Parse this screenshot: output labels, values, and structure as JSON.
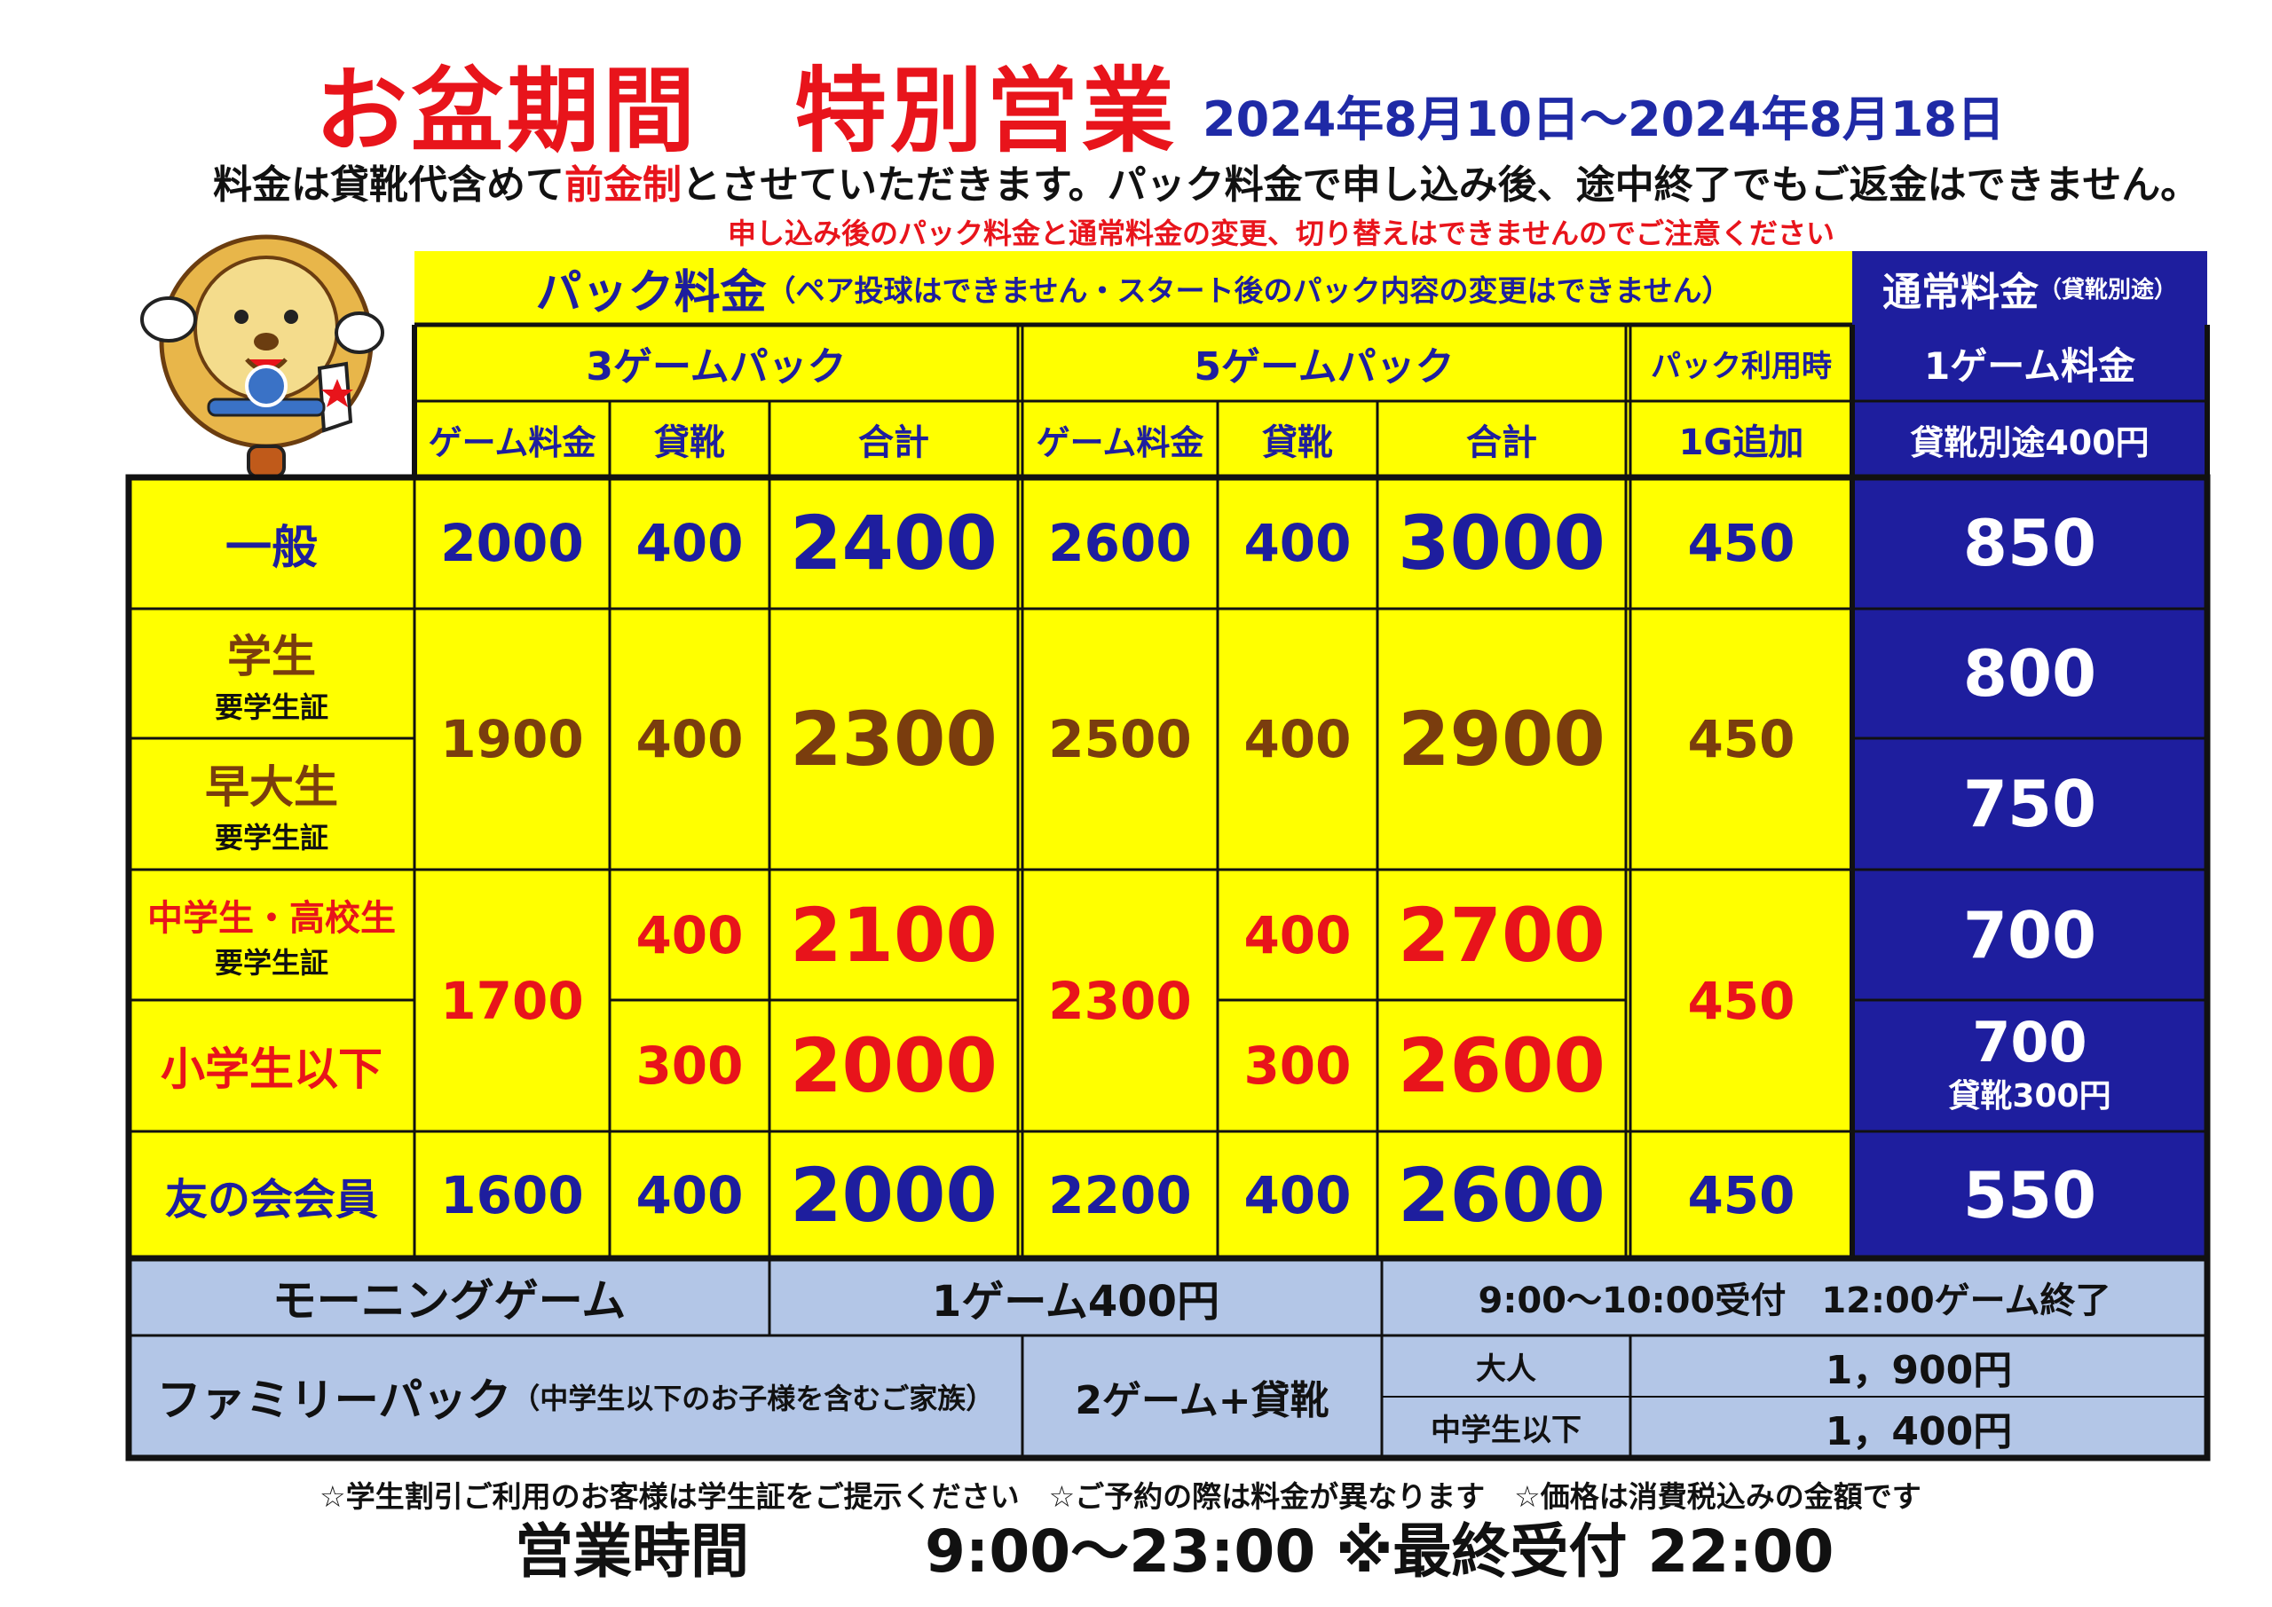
{
  "header": {
    "title": "お盆期間　特別営業",
    "dates": "2024年8月10日～2024年8月18日",
    "notice_pre": "料金は貸靴代含めて",
    "notice_red": "前金制",
    "notice_post": "とさせていただきます。パック料金で申し込み後、途中終了でもご返金はできません。",
    "warning": "申し込み後のパック料金と通常料金の変更、切り替えはできませんのでご注意ください"
  },
  "table": {
    "pack_title": "パック料金",
    "pack_note": "（ペア投球はできません・スタート後のパック内容の変更はできません）",
    "normal_title": "通常料金",
    "normal_note": "（貸靴別途）",
    "pack3": "3ゲームパック",
    "pack5": "5ゲームパック",
    "pack_use": "パック利用時",
    "add_1g": "1G追加",
    "game_fee": "ゲーム料金",
    "shoes": "貸靴",
    "total": "合計",
    "one_game_fee": "1ゲーム料金",
    "shoes_extra": "貸靴別途400円",
    "rows": {
      "general": {
        "label": "一般",
        "g3": "2000",
        "s3": "400",
        "t3": "2400",
        "g5": "2600",
        "s5": "400",
        "t5": "3000",
        "add": "450",
        "normal": "850"
      },
      "student": {
        "label": "学生",
        "sub": "要学生証",
        "normal": "800"
      },
      "waseda": {
        "label": "早大生",
        "sub": "要学生証",
        "normal": "750"
      },
      "student_group": {
        "g3": "1900",
        "s3": "400",
        "t3": "2300",
        "g5": "2500",
        "s5": "400",
        "t5": "2900",
        "add": "450"
      },
      "junior": {
        "label": "中学生・高校生",
        "sub": "要学生証",
        "s3": "400",
        "t3": "2100",
        "s5": "400",
        "t5": "2700",
        "normal": "700"
      },
      "child": {
        "label": "小学生以下",
        "s3": "300",
        "t3": "2000",
        "s5": "300",
        "t5": "2600",
        "normal": "700",
        "normal_sub": "貸靴300円"
      },
      "junior_group": {
        "g3": "1700",
        "g5": "2300",
        "add": "450"
      },
      "member": {
        "label": "友の会会員",
        "g3": "1600",
        "s3": "400",
        "t3": "2000",
        "g5": "2200",
        "s5": "400",
        "t5": "2600",
        "add": "450",
        "normal": "550"
      }
    },
    "morning": {
      "label": "モーニングゲーム",
      "price": "1ゲーム400円",
      "time": "9:00～10:00受付　12:00ゲーム終了"
    },
    "family": {
      "label": "ファミリーパック",
      "note": "（中学生以下のお子様を含むご家族）",
      "content": "2ゲーム+貸靴",
      "adult": "大人",
      "adult_price": "1，900円",
      "child": "中学生以下",
      "child_price": "1，400円"
    }
  },
  "footer": {
    "notes": "☆学生割引ご利用のお客様は学生証をご提示ください　☆ご予約の際は料金が異なります　☆価格は消費税込みの金額です",
    "hours": "営業時間　　　9:00～23:00 ※最終受付 22:00"
  },
  "colors": {
    "red": "#e8141b",
    "navy": "#1e1e9e",
    "yellow": "#ffff00",
    "lightblue": "#b3c6e7",
    "brown": "#7a3d0e"
  },
  "mascot": "lion-mascot"
}
